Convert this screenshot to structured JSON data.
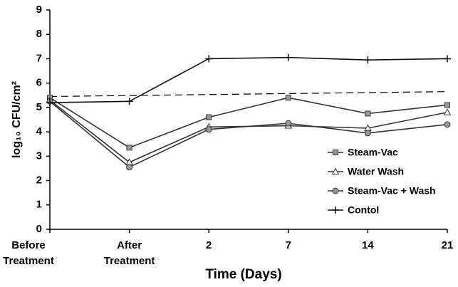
{
  "chart_data": {
    "type": "line",
    "x_label": "Time (Days)",
    "y_label": "log₁₀ CFU/cm²",
    "categories": [
      "Before Treatment",
      "After Treatment",
      "2",
      "7",
      "14",
      "21"
    ],
    "series": [
      {
        "name": "Steam-Vac",
        "color": "#333333",
        "marker": "square",
        "values": [
          5.4,
          3.35,
          4.6,
          5.4,
          4.75,
          5.1
        ]
      },
      {
        "name": "Water Wash",
        "color": "#333333",
        "marker": "triangle",
        "values": [
          5.3,
          2.75,
          4.2,
          4.25,
          4.15,
          4.8
        ]
      },
      {
        "name": "Steam-Vac + Wash",
        "color": "#333333",
        "marker": "circle",
        "values": [
          5.25,
          2.55,
          4.1,
          4.35,
          3.95,
          4.3
        ]
      },
      {
        "name": "Contol",
        "color": "#111111",
        "marker": "plus",
        "values": [
          5.2,
          5.25,
          7.0,
          7.05,
          6.95,
          7.0
        ]
      }
    ],
    "dashed_line": [
      5.45,
      5.65
    ],
    "ylim": [
      0,
      9
    ],
    "yticks": [
      0,
      1,
      2,
      3,
      4,
      5,
      6,
      7,
      8,
      9
    ],
    "legend": "right"
  }
}
